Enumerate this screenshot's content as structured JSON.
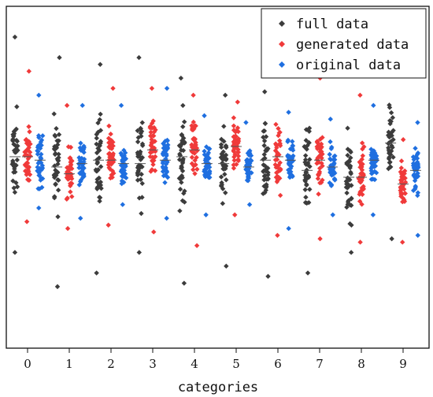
{
  "chart_data": {
    "type": "scatter",
    "title": "",
    "xlabel": "categories",
    "ylabel": "",
    "categories": [
      "0",
      "1",
      "2",
      "3",
      "4",
      "5",
      "6",
      "7",
      "8",
      "9"
    ],
    "ylim": [
      0,
      1
    ],
    "grid": false,
    "legend_position": "top-right",
    "series": [
      {
        "name": "full data",
        "color": "#3c3c3c",
        "offset": -0.3,
        "medians": [
          0.56,
          0.53,
          0.55,
          0.54,
          0.56,
          0.54,
          0.55,
          0.52,
          0.5,
          0.6
        ],
        "mins": [
          0.28,
          0.18,
          0.22,
          0.28,
          0.19,
          0.24,
          0.21,
          0.22,
          0.28,
          0.32
        ],
        "maxs": [
          0.91,
          0.85,
          0.83,
          0.85,
          0.79,
          0.74,
          0.75,
          0.8,
          0.83,
          0.8
        ]
      },
      {
        "name": "generated data",
        "color": "#f03a3a",
        "offset": 0,
        "medians": [
          0.56,
          0.51,
          0.55,
          0.58,
          0.58,
          0.59,
          0.56,
          0.55,
          0.5,
          0.48
        ],
        "mins": [
          0.37,
          0.35,
          0.36,
          0.34,
          0.3,
          0.39,
          0.33,
          0.32,
          0.31,
          0.31
        ],
        "maxs": [
          0.81,
          0.71,
          0.76,
          0.76,
          0.74,
          0.72,
          0.81,
          0.79,
          0.74,
          0.61
        ]
      },
      {
        "name": "original data",
        "color": "#1f6fe0",
        "offset": 0.3,
        "medians": [
          0.55,
          0.54,
          0.54,
          0.55,
          0.54,
          0.53,
          0.55,
          0.53,
          0.55,
          0.52
        ],
        "mins": [
          0.41,
          0.38,
          0.42,
          0.38,
          0.39,
          0.42,
          0.35,
          0.39,
          0.39,
          0.33
        ],
        "maxs": [
          0.74,
          0.71,
          0.71,
          0.76,
          0.68,
          0.66,
          0.69,
          0.67,
          0.71,
          0.66
        ]
      }
    ]
  }
}
